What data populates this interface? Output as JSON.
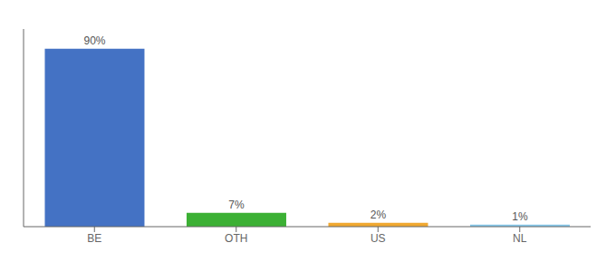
{
  "chart_data": {
    "type": "bar",
    "categories": [
      "BE",
      "OTH",
      "US",
      "NL"
    ],
    "values": [
      90,
      7,
      2,
      1
    ],
    "value_labels": [
      "90%",
      "7%",
      "2%",
      "1%"
    ],
    "colors": [
      "#4472c4",
      "#3cb034",
      "#f0a830",
      "#85c8ea"
    ],
    "ylim": [
      0,
      100
    ],
    "data_labels": true,
    "tick_labels": "x",
    "grid": false
  }
}
